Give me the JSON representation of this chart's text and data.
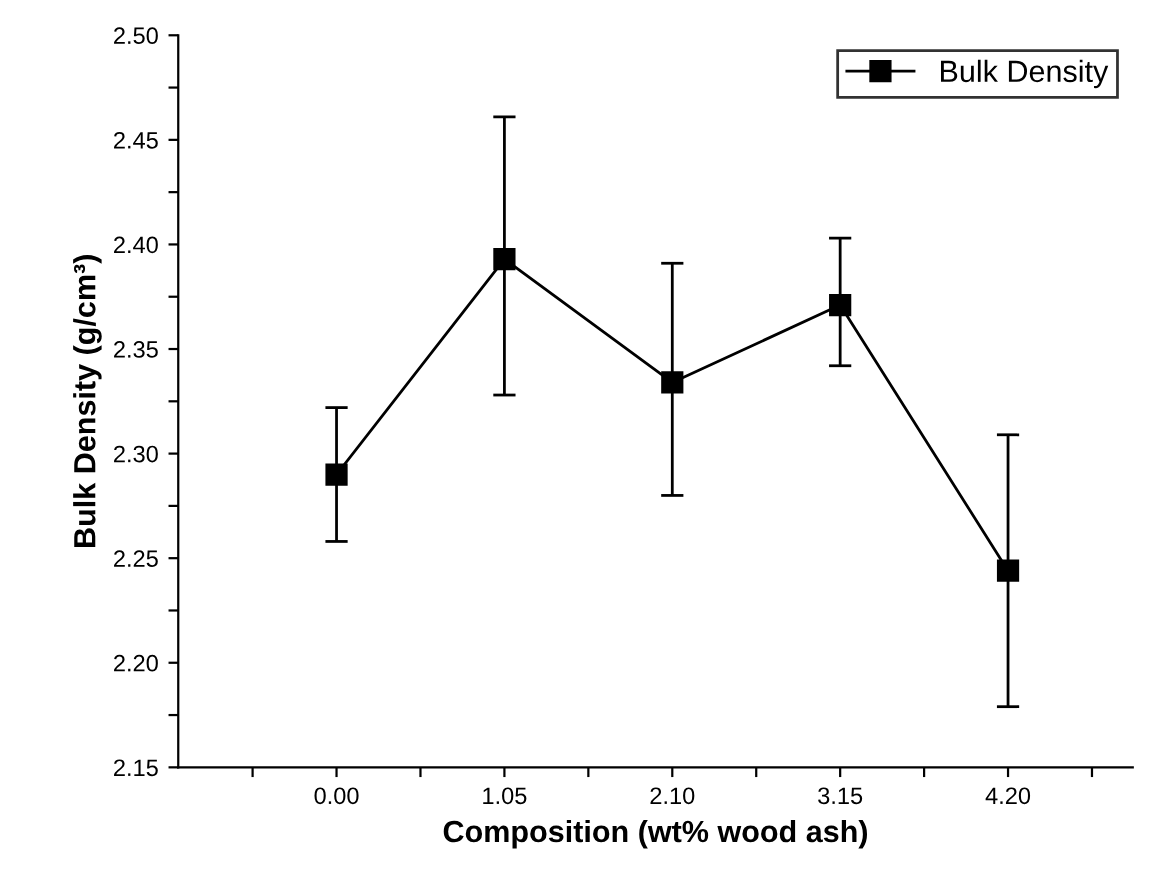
{
  "chart_data": {
    "type": "line",
    "xlabel": "Composition (wt% wood ash)",
    "ylabel": "Bulk Density (g/cm³)",
    "x": [
      0,
      1.05,
      2.1,
      3.15,
      4.2
    ],
    "series": [
      {
        "name": "Bulk Density",
        "color": "#000000",
        "values": [
          2.29,
          2.393,
          2.334,
          2.371,
          2.244
        ],
        "errors": [
          [
            2.258,
            2.322
          ],
          [
            2.328,
            2.461
          ],
          [
            2.28,
            2.391
          ],
          [
            2.342,
            2.403
          ],
          [
            2.179,
            2.309
          ]
        ]
      }
    ],
    "xlim": [
      -0.99,
      4.98
    ],
    "xticks": [
      {
        "value": -0.525,
        "label": null
      },
      {
        "value": 0,
        "label": "0.00"
      },
      {
        "value": 0.525,
        "label": null
      },
      {
        "value": 1.05,
        "label": "1.05"
      },
      {
        "value": 1.575,
        "label": null
      },
      {
        "value": 2.1,
        "label": "2.10"
      },
      {
        "value": 2.625,
        "label": null
      },
      {
        "value": 3.15,
        "label": "3.15"
      },
      {
        "value": 3.675,
        "label": null
      },
      {
        "value": 4.2,
        "label": "4.20"
      },
      {
        "value": 4.725,
        "label": null
      }
    ],
    "ylim": [
      2.15,
      2.5
    ],
    "yticks": [
      {
        "value": 2.15,
        "label": "2.15"
      },
      {
        "value": 2.175,
        "label": null
      },
      {
        "value": 2.2,
        "label": "2.20"
      },
      {
        "value": 2.225,
        "label": null
      },
      {
        "value": 2.25,
        "label": "2.25"
      },
      {
        "value": 2.275,
        "label": null
      },
      {
        "value": 2.3,
        "label": "2.30"
      },
      {
        "value": 2.325,
        "label": null
      },
      {
        "value": 2.35,
        "label": "2.35"
      },
      {
        "value": 2.375,
        "label": null
      },
      {
        "value": 2.4,
        "label": "2.40"
      },
      {
        "value": 2.425,
        "label": null
      },
      {
        "value": 2.45,
        "label": "2.45"
      },
      {
        "value": 2.475,
        "label": null
      },
      {
        "value": 2.5,
        "label": "2.50"
      }
    ],
    "grid": false,
    "legend": "top right",
    "marker": "square",
    "line_style": "solid"
  }
}
